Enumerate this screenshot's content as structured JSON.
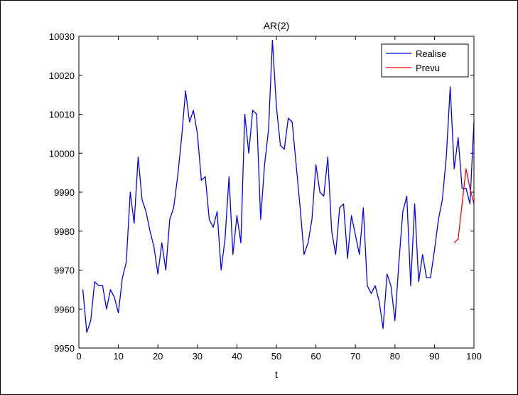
{
  "chart_data": {
    "type": "line",
    "title": "AR(2)",
    "xlabel": "t",
    "ylabel": "",
    "xlim": [
      0,
      100
    ],
    "ylim": [
      9950,
      10030
    ],
    "xticks": [
      0,
      10,
      20,
      30,
      40,
      50,
      60,
      70,
      80,
      90,
      100
    ],
    "yticks": [
      9950,
      9960,
      9970,
      9980,
      9990,
      10000,
      10010,
      10020,
      10030
    ],
    "legend_position": "top-right",
    "grid": false,
    "series": [
      {
        "name": "Realise",
        "color": "#0000ff",
        "x": [
          1,
          2,
          3,
          4,
          5,
          6,
          7,
          8,
          9,
          10,
          11,
          12,
          13,
          14,
          15,
          16,
          17,
          18,
          19,
          20,
          21,
          22,
          23,
          24,
          25,
          26,
          27,
          28,
          29,
          30,
          31,
          32,
          33,
          34,
          35,
          36,
          37,
          38,
          39,
          40,
          41,
          42,
          43,
          44,
          45,
          46,
          47,
          48,
          49,
          50,
          51,
          52,
          53,
          54,
          55,
          56,
          57,
          58,
          59,
          60,
          61,
          62,
          63,
          64,
          65,
          66,
          67,
          68,
          69,
          70,
          71,
          72,
          73,
          74,
          75,
          76,
          77,
          78,
          79,
          80,
          81,
          82,
          83,
          84,
          85,
          86,
          87,
          88,
          89,
          90,
          91,
          92,
          93,
          94,
          95,
          96,
          97,
          98,
          99,
          100
        ],
        "values": [
          9965,
          9954,
          9957,
          9967,
          9966,
          9966,
          9960,
          9965,
          9963,
          9959,
          9968,
          9972,
          9990,
          9982,
          9999,
          9988,
          9985,
          9980,
          9976,
          9969,
          9977,
          9970,
          9983,
          9986,
          9994,
          10004,
          10016,
          10008,
          10011,
          10005,
          9993,
          9994,
          9983,
          9981,
          9985,
          9970,
          9978,
          9994,
          9974,
          9984,
          9977,
          10010,
          10000,
          10011,
          10010,
          9983,
          9997,
          10006,
          10029,
          10012,
          10002,
          10001,
          10009,
          10008,
          9997,
          9986,
          9974,
          9977,
          9983,
          9997,
          9990,
          9989,
          9999,
          9980,
          9974,
          9986,
          9987,
          9973,
          9984,
          9979,
          9974,
          9986,
          9966,
          9964,
          9966,
          9962,
          9955,
          9969,
          9966,
          9957,
          9972,
          9985,
          9989,
          9966,
          9987,
          9967,
          9974,
          9968,
          9968,
          9975,
          9983,
          9988,
          9999,
          10017,
          9996,
          10004,
          9991,
          9991,
          9987,
          10008
        ]
      },
      {
        "name": "Prevu",
        "color": "#ff0000",
        "x": [
          95,
          96,
          97,
          98,
          99,
          100
        ],
        "values": [
          9977,
          9978,
          9987,
          9996,
          9991,
          9987
        ]
      }
    ]
  }
}
